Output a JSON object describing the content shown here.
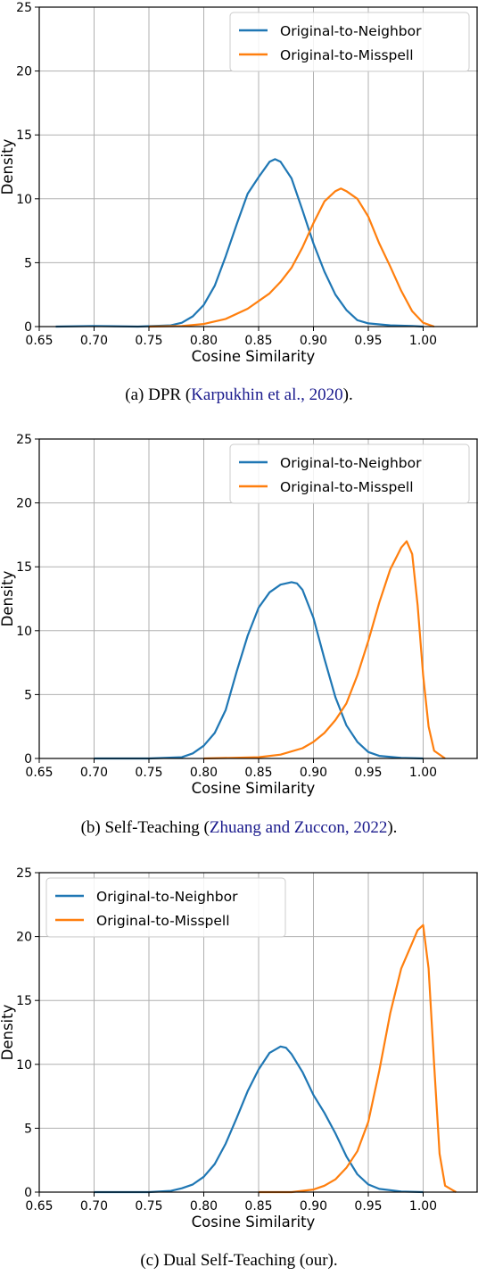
{
  "panels": [
    {
      "caption": {
        "prefix": "(a) DPR (",
        "cite": "Karpukhin et al., 2020",
        "suffix": ")."
      },
      "chart_data": {
        "type": "line",
        "xlabel": "Cosine Similarity",
        "ylabel": "Density",
        "xlim": [
          0.65,
          1.05
        ],
        "ylim": [
          0,
          25
        ],
        "xticks": [
          "0.65",
          "0.70",
          "0.75",
          "0.80",
          "0.85",
          "0.90",
          "0.95",
          "1.00"
        ],
        "yticks": [
          "0",
          "5",
          "10",
          "15",
          "20",
          "25"
        ],
        "grid": true,
        "legend": "top-right",
        "series": [
          {
            "name": "Original-to-Neighbor",
            "color": "#1f77b4",
            "x": [
              0.665,
              0.7,
              0.74,
              0.77,
              0.78,
              0.79,
              0.8,
              0.81,
              0.82,
              0.83,
              0.84,
              0.85,
              0.86,
              0.865,
              0.87,
              0.88,
              0.89,
              0.9,
              0.91,
              0.92,
              0.93,
              0.94,
              0.95,
              0.97,
              0.99,
              1.0
            ],
            "y": [
              0.0,
              0.05,
              0.0,
              0.1,
              0.3,
              0.8,
              1.7,
              3.2,
              5.5,
              8.0,
              10.4,
              11.7,
              12.9,
              13.1,
              12.9,
              11.6,
              9.1,
              6.5,
              4.3,
              2.5,
              1.3,
              0.5,
              0.25,
              0.1,
              0.05,
              0.0
            ]
          },
          {
            "name": "Original-to-Misspell",
            "color": "#ff7f0e",
            "x": [
              0.75,
              0.78,
              0.8,
              0.82,
              0.84,
              0.86,
              0.87,
              0.88,
              0.89,
              0.9,
              0.91,
              0.92,
              0.925,
              0.93,
              0.94,
              0.95,
              0.96,
              0.97,
              0.98,
              0.99,
              1.0,
              1.01
            ],
            "y": [
              0.0,
              0.05,
              0.2,
              0.6,
              1.4,
              2.6,
              3.5,
              4.6,
              6.2,
              8.1,
              9.8,
              10.6,
              10.8,
              10.6,
              10.0,
              8.6,
              6.5,
              4.7,
              2.8,
              1.2,
              0.3,
              0.0
            ]
          }
        ]
      }
    },
    {
      "caption": {
        "prefix": "(b) Self-Teaching (",
        "cite": "Zhuang and Zuccon, 2022",
        "suffix": ")."
      },
      "chart_data": {
        "type": "line",
        "xlabel": "Cosine Similarity",
        "ylabel": "Density",
        "xlim": [
          0.65,
          1.05
        ],
        "ylim": [
          0,
          25
        ],
        "xticks": [
          "0.65",
          "0.70",
          "0.75",
          "0.80",
          "0.85",
          "0.90",
          "0.95",
          "1.00"
        ],
        "yticks": [
          "0",
          "5",
          "10",
          "15",
          "20",
          "25"
        ],
        "grid": true,
        "legend": "top-right",
        "series": [
          {
            "name": "Original-to-Neighbor",
            "color": "#1f77b4",
            "x": [
              0.7,
              0.75,
              0.78,
              0.79,
              0.8,
              0.81,
              0.82,
              0.83,
              0.84,
              0.85,
              0.86,
              0.87,
              0.88,
              0.885,
              0.89,
              0.9,
              0.91,
              0.92,
              0.93,
              0.94,
              0.95,
              0.96,
              0.98,
              1.0
            ],
            "y": [
              0.0,
              0.0,
              0.1,
              0.4,
              1.0,
              2.0,
              3.8,
              6.8,
              9.6,
              11.8,
              13.0,
              13.6,
              13.8,
              13.7,
              13.2,
              11.0,
              7.8,
              4.8,
              2.6,
              1.3,
              0.5,
              0.2,
              0.05,
              0.0
            ]
          },
          {
            "name": "Original-to-Misspell",
            "color": "#ff7f0e",
            "x": [
              0.8,
              0.85,
              0.87,
              0.89,
              0.9,
              0.91,
              0.92,
              0.93,
              0.94,
              0.95,
              0.96,
              0.97,
              0.98,
              0.985,
              0.99,
              0.995,
              1.0,
              1.005,
              1.01,
              1.02
            ],
            "y": [
              0.0,
              0.1,
              0.3,
              0.8,
              1.3,
              2.0,
              3.0,
              4.3,
              6.5,
              9.2,
              12.2,
              14.8,
              16.5,
              17.0,
              16.0,
              12.0,
              6.5,
              2.5,
              0.6,
              0.0
            ]
          }
        ]
      }
    },
    {
      "caption": {
        "prefix": "(c) Dual Self-Teaching (our).",
        "cite": "",
        "suffix": ""
      },
      "chart_data": {
        "type": "line",
        "xlabel": "Cosine Similarity",
        "ylabel": "Density",
        "xlim": [
          0.65,
          1.05
        ],
        "ylim": [
          0,
          25
        ],
        "xticks": [
          "0.65",
          "0.70",
          "0.75",
          "0.80",
          "0.85",
          "0.90",
          "0.95",
          "1.00"
        ],
        "yticks": [
          "0",
          "5",
          "10",
          "15",
          "20",
          "25"
        ],
        "grid": true,
        "legend": "top-left",
        "series": [
          {
            "name": "Original-to-Neighbor",
            "color": "#1f77b4",
            "x": [
              0.7,
              0.75,
              0.77,
              0.78,
              0.79,
              0.8,
              0.81,
              0.82,
              0.83,
              0.84,
              0.85,
              0.86,
              0.87,
              0.875,
              0.88,
              0.89,
              0.9,
              0.91,
              0.92,
              0.93,
              0.94,
              0.95,
              0.96,
              0.98,
              1.0
            ],
            "y": [
              0.0,
              0.0,
              0.1,
              0.3,
              0.6,
              1.2,
              2.2,
              3.8,
              5.8,
              7.9,
              9.6,
              10.9,
              11.4,
              11.3,
              10.8,
              9.4,
              7.6,
              6.2,
              4.6,
              2.8,
              1.4,
              0.6,
              0.25,
              0.05,
              0.0
            ]
          },
          {
            "name": "Original-to-Misspell",
            "color": "#ff7f0e",
            "x": [
              0.85,
              0.88,
              0.9,
              0.91,
              0.92,
              0.93,
              0.94,
              0.95,
              0.96,
              0.97,
              0.98,
              0.99,
              0.995,
              1.0,
              1.005,
              1.01,
              1.015,
              1.02,
              1.03
            ],
            "y": [
              0.0,
              0.0,
              0.2,
              0.5,
              1.0,
              1.9,
              3.2,
              5.5,
              9.5,
              14.0,
              17.5,
              19.5,
              20.5,
              20.9,
              17.5,
              10.0,
              3.0,
              0.5,
              0.0
            ]
          }
        ]
      }
    }
  ]
}
